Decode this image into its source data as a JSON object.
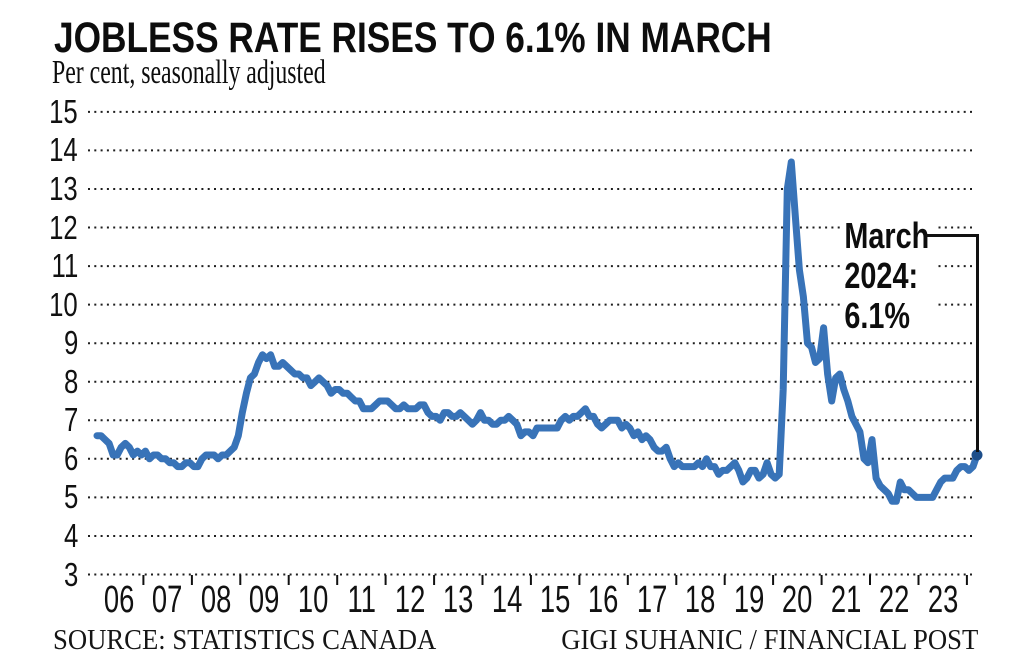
{
  "header": {
    "title": "JOBLESS RATE RISES TO 6.1% IN MARCH",
    "subtitle": "Per cent, seasonally adjusted"
  },
  "annotation": {
    "lines": [
      "March",
      "2024:",
      "6.1%"
    ],
    "full_text": "March 2024: 6.1%"
  },
  "footer": {
    "source": "SOURCE: STATISTICS CANADA",
    "credit": "GIGI SUHANIC / FINANCIAL POST"
  },
  "chart_data": {
    "type": "line",
    "title": "JOBLESS RATE RISES TO 6.1% IN MARCH",
    "ylabel": "Per cent, seasonally adjusted",
    "xlabel": "",
    "ylim": [
      3,
      15
    ],
    "y_ticks": [
      3,
      4,
      5,
      6,
      7,
      8,
      9,
      10,
      11,
      12,
      13,
      14,
      15
    ],
    "grid": "dotted horizontal",
    "legend": "none",
    "line_color": "#3873b8",
    "end_marker_color": "#1d4e8a",
    "x_start": "2006-01",
    "x_end": "2024-03",
    "x_tick_labels": [
      "06",
      "07",
      "08",
      "09",
      "10",
      "11",
      "12",
      "13",
      "14",
      "15",
      "16",
      "17",
      "18",
      "19",
      "20",
      "21",
      "22",
      "23"
    ],
    "annotation_value": 6.1,
    "peak_value": 13.7,
    "values": [
      6.6,
      6.6,
      6.5,
      6.4,
      6.1,
      6.1,
      6.3,
      6.4,
      6.3,
      6.1,
      6.2,
      6.1,
      6.2,
      6.0,
      6.1,
      6.1,
      6.0,
      6.0,
      5.9,
      5.9,
      5.8,
      5.8,
      5.9,
      5.9,
      5.8,
      5.8,
      6.0,
      6.1,
      6.1,
      6.1,
      6.0,
      6.1,
      6.1,
      6.2,
      6.3,
      6.6,
      7.2,
      7.7,
      8.1,
      8.2,
      8.5,
      8.7,
      8.6,
      8.7,
      8.4,
      8.4,
      8.5,
      8.4,
      8.3,
      8.2,
      8.2,
      8.1,
      8.1,
      7.9,
      8.0,
      8.1,
      8.0,
      7.9,
      7.7,
      7.8,
      7.8,
      7.7,
      7.7,
      7.6,
      7.5,
      7.5,
      7.3,
      7.3,
      7.3,
      7.4,
      7.5,
      7.5,
      7.5,
      7.4,
      7.3,
      7.3,
      7.4,
      7.3,
      7.3,
      7.3,
      7.4,
      7.4,
      7.2,
      7.1,
      7.1,
      7.0,
      7.2,
      7.2,
      7.1,
      7.1,
      7.2,
      7.1,
      7.0,
      6.9,
      7.0,
      7.2,
      7.0,
      7.0,
      6.9,
      6.9,
      7.0,
      7.0,
      7.1,
      7.0,
      6.9,
      6.6,
      6.7,
      6.7,
      6.6,
      6.8,
      6.8,
      6.8,
      6.8,
      6.8,
      6.8,
      7.0,
      7.1,
      7.0,
      7.1,
      7.1,
      7.2,
      7.3,
      7.1,
      7.1,
      6.9,
      6.8,
      6.9,
      7.0,
      7.0,
      7.0,
      6.8,
      6.9,
      6.8,
      6.6,
      6.7,
      6.5,
      6.6,
      6.5,
      6.3,
      6.2,
      6.2,
      6.3,
      6.0,
      5.8,
      5.9,
      5.8,
      5.8,
      5.8,
      5.8,
      5.9,
      5.8,
      6.0,
      5.8,
      5.8,
      5.6,
      5.7,
      5.7,
      5.8,
      5.9,
      5.7,
      5.4,
      5.5,
      5.7,
      5.7,
      5.5,
      5.6,
      5.9,
      5.6,
      5.5,
      5.6,
      7.8,
      13.0,
      13.7,
      12.3,
      10.9,
      10.2,
      9.0,
      8.9,
      8.5,
      8.6,
      9.4,
      8.2,
      7.5,
      8.1,
      8.2,
      7.8,
      7.5,
      7.1,
      6.9,
      6.7,
      6.0,
      5.9,
      6.5,
      5.5,
      5.3,
      5.2,
      5.1,
      4.9,
      4.9,
      5.4,
      5.2,
      5.2,
      5.1,
      5.0,
      5.0,
      5.0,
      5.0,
      5.0,
      5.2,
      5.4,
      5.5,
      5.5,
      5.5,
      5.7,
      5.8,
      5.8,
      5.7,
      5.8,
      6.1
    ]
  }
}
